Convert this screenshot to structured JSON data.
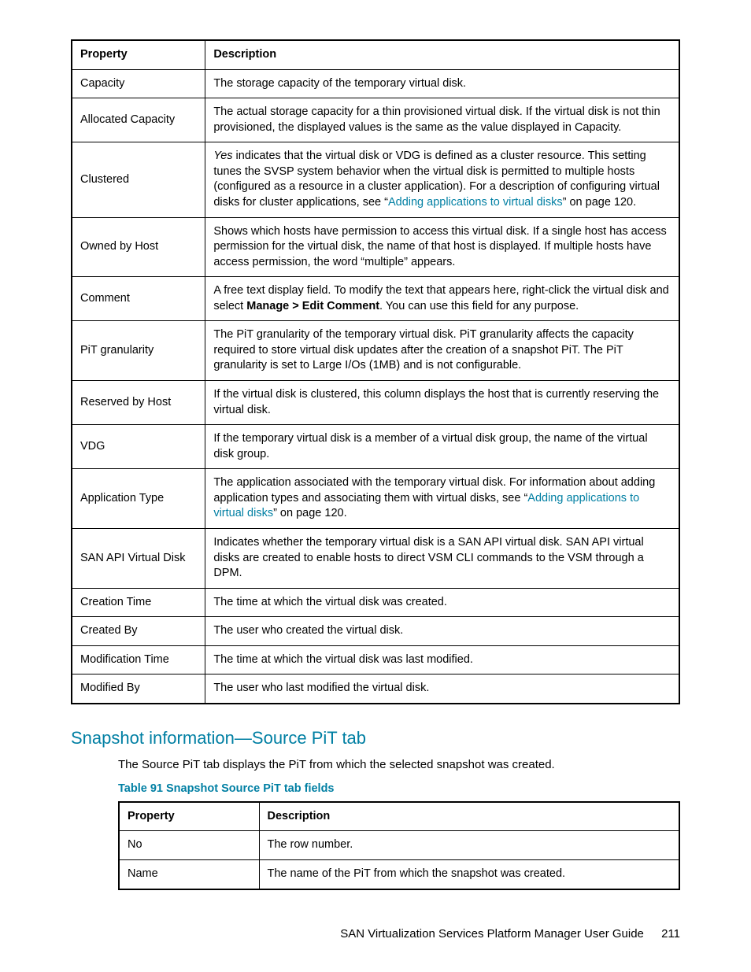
{
  "colors": {
    "accent": "#007fa3",
    "text": "#000000",
    "background": "#ffffff",
    "border": "#000000"
  },
  "typography": {
    "body_fontsize": 14.5,
    "heading_fontsize": 22,
    "caption_fontsize": 14.5,
    "footer_fontsize": 15
  },
  "table1": {
    "headers": {
      "property": "Property",
      "description": "Description"
    },
    "col_widths_pct": [
      22,
      78
    ],
    "rows": [
      {
        "property": "Capacity",
        "desc_parts": [
          {
            "t": "The storage capacity of the temporary virtual disk."
          }
        ]
      },
      {
        "property": "Allocated Capacity",
        "desc_parts": [
          {
            "t": "The actual storage capacity for a thin provisioned virtual disk. If the virtual disk is not thin provisioned, the displayed values is the same as the value displayed in Capacity."
          }
        ]
      },
      {
        "property": "Clustered",
        "desc_parts": [
          {
            "t": "Yes",
            "style": "italic"
          },
          {
            "t": " indicates that the virtual disk or VDG is defined as a cluster resource. This setting tunes the SVSP system behavior when the virtual disk is permitted to multiple hosts (configured as a resource in a cluster application). For a description of configuring virtual disks for cluster applications, see “"
          },
          {
            "t": "Adding applications to virtual disks",
            "style": "link"
          },
          {
            "t": "” on page 120."
          }
        ]
      },
      {
        "property": "Owned by Host",
        "desc_parts": [
          {
            "t": "Shows which hosts have permission to access this virtual disk. If a single host has access permission for the virtual disk, the name of that host is displayed. If multiple hosts have access permission, the word “multiple” appears."
          }
        ]
      },
      {
        "property": "Comment",
        "desc_parts": [
          {
            "t": "A free text display field. To modify the text that appears here, right-click the virtual disk and select "
          },
          {
            "t": "Manage > Edit Comment",
            "style": "bold"
          },
          {
            "t": ". You can use this field for any purpose."
          }
        ]
      },
      {
        "property": "PiT granularity",
        "desc_parts": [
          {
            "t": "The PiT granularity of the temporary virtual disk. PiT granularity affects the capacity required to store virtual disk updates after the creation of a snapshot PiT. The PiT granularity is set to Large I/Os (1MB) and is not configurable."
          }
        ]
      },
      {
        "property": "Reserved by Host",
        "desc_parts": [
          {
            "t": "If the virtual disk is clustered, this column displays the host that is currently reserving the virtual disk."
          }
        ]
      },
      {
        "property": "VDG",
        "desc_parts": [
          {
            "t": "If the temporary virtual disk is a member of a virtual disk group, the name of the virtual disk group."
          }
        ]
      },
      {
        "property": "Application Type",
        "desc_parts": [
          {
            "t": "The application associated with the temporary virtual disk. For information about adding application types and associating them with virtual disks, see “"
          },
          {
            "t": "Adding applications to virtual disks",
            "style": "link"
          },
          {
            "t": "” on page 120."
          }
        ]
      },
      {
        "property": "SAN API Virtual Disk",
        "desc_parts": [
          {
            "t": "Indicates whether the temporary virtual disk is a SAN API virtual disk. SAN API virtual disks are created to enable hosts to direct VSM CLI commands to the VSM through a DPM."
          }
        ]
      },
      {
        "property": "Creation Time",
        "desc_parts": [
          {
            "t": "The time at which the virtual disk was created."
          }
        ]
      },
      {
        "property": "Created By",
        "desc_parts": [
          {
            "t": "The user who created the virtual disk."
          }
        ]
      },
      {
        "property": "Modification Time",
        "desc_parts": [
          {
            "t": "The time at which the virtual disk was last modified."
          }
        ]
      },
      {
        "property": "Modified By",
        "desc_parts": [
          {
            "t": "The user who last modified the virtual disk."
          }
        ]
      }
    ]
  },
  "section": {
    "heading": "Snapshot information—Source PiT tab",
    "body": "The Source PiT tab displays the PiT from which the selected snapshot was created.",
    "table_caption": "Table 91 Snapshot Source PiT tab fields"
  },
  "table2": {
    "headers": {
      "property": "Property",
      "description": "Description"
    },
    "col_widths_pct": [
      25,
      75
    ],
    "rows": [
      {
        "property": "No",
        "desc_parts": [
          {
            "t": "The row number."
          }
        ]
      },
      {
        "property": "Name",
        "desc_parts": [
          {
            "t": "The name of the PiT from which the snapshot was created."
          }
        ]
      }
    ]
  },
  "footer": {
    "title": "SAN Virtualization Services Platform Manager User Guide",
    "page": "211"
  }
}
